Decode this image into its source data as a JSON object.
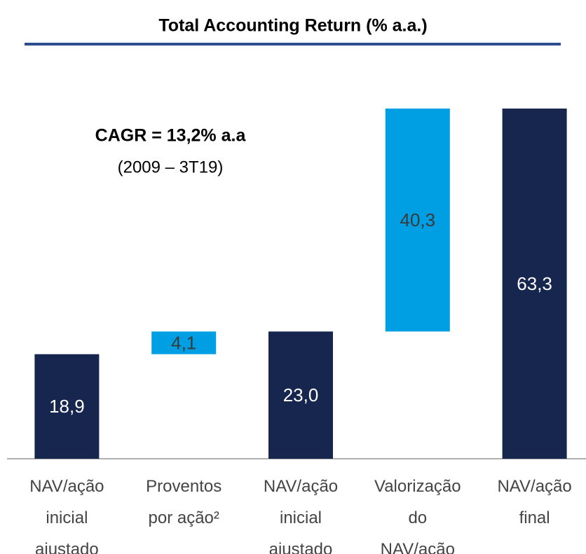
{
  "chart_data": {
    "type": "waterfall",
    "title": "Total Accounting Return (% a.a.)",
    "annotation": {
      "headline": "CAGR = 13,2% a.a",
      "period": "(2009 – 3T19)"
    },
    "categories": [
      [
        "NAV/ação",
        "inicial",
        "ajustado"
      ],
      [
        "Proventos",
        "por ação²"
      ],
      [
        "NAV/ação",
        "inicial",
        "ajustado"
      ],
      [
        "Valorização",
        "do",
        "NAV/ação"
      ],
      [
        "NAV/ação",
        "final"
      ]
    ],
    "values": [
      18.9,
      4.1,
      23.0,
      40.3,
      63.3
    ],
    "value_labels": [
      "18,9",
      "4,1",
      "23,0",
      "40,3",
      "63,3"
    ],
    "measure": [
      "absolute",
      "relative",
      "absolute",
      "relative",
      "absolute"
    ],
    "colors": {
      "absolute": "#16264f",
      "relative": "#009fe3"
    },
    "label_colors": {
      "absolute": "#ffffff",
      "relative": "#3a3a3a"
    },
    "ylim": [
      0,
      63.3
    ]
  }
}
